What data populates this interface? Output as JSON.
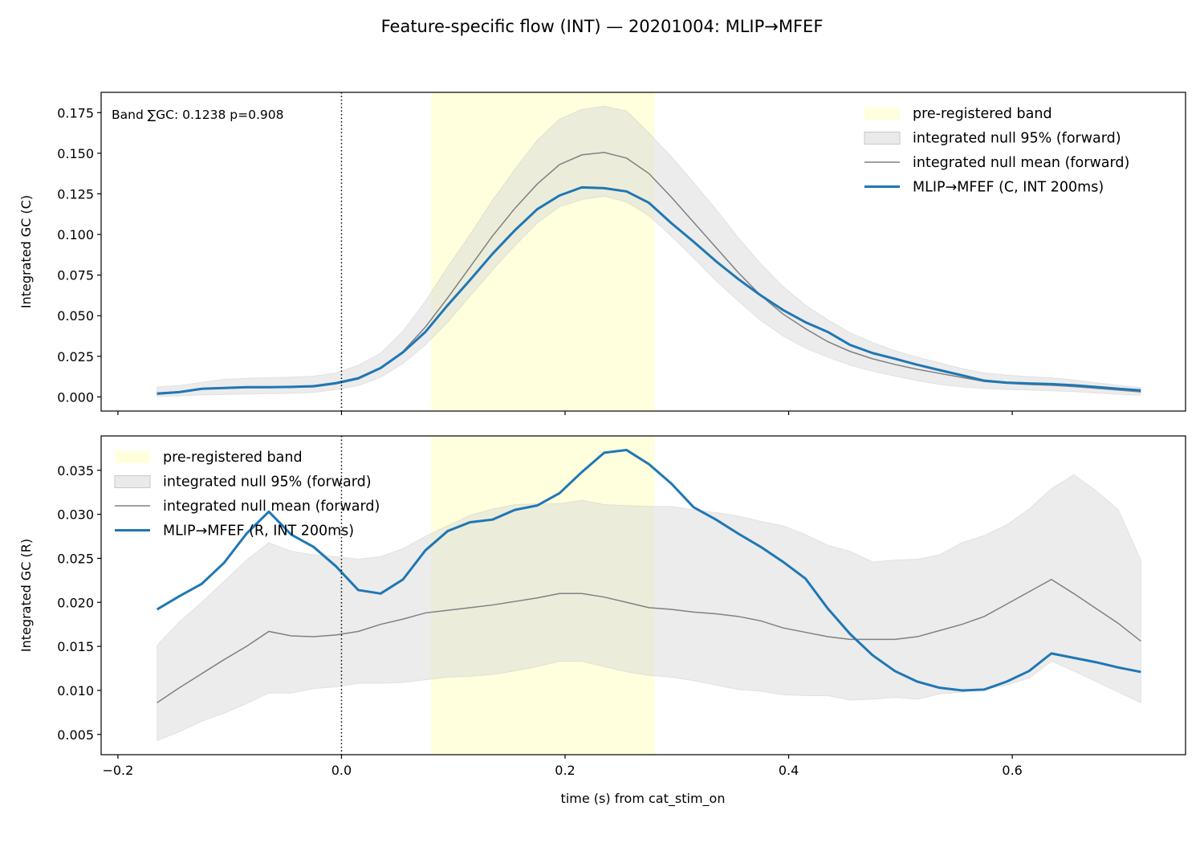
{
  "figure": {
    "title": "Feature-specific flow (INT) — 20201004: MLIP→MFEF",
    "xlabel": "time (s) from cat_stim_on"
  },
  "colors": {
    "band": "#ffffdd",
    "null_fill": "#d9d9d9",
    "null_mean": "#808080",
    "series": "#1f77b4",
    "marker_line": "#000000"
  },
  "chart_data": [
    {
      "type": "line",
      "ylabel": "Integrated GC (C)",
      "xlim": [
        -0.215,
        0.755
      ],
      "ylim": [
        -0.0087,
        0.1875
      ],
      "xticks": [
        {
          "v": -0.2,
          "label": "−0.2"
        },
        {
          "v": 0.0,
          "label": "0.0"
        },
        {
          "v": 0.2,
          "label": "0.2"
        },
        {
          "v": 0.4,
          "label": "0.4"
        },
        {
          "v": 0.6,
          "label": "0.6"
        }
      ],
      "show_xtick_labels": false,
      "yticks": [
        {
          "v": 0.0,
          "label": "0.000"
        },
        {
          "v": 0.025,
          "label": "0.025"
        },
        {
          "v": 0.05,
          "label": "0.050"
        },
        {
          "v": 0.075,
          "label": "0.075"
        },
        {
          "v": 0.1,
          "label": "0.100"
        },
        {
          "v": 0.125,
          "label": "0.125"
        },
        {
          "v": 0.15,
          "label": "0.150"
        },
        {
          "v": 0.175,
          "label": "0.175"
        }
      ],
      "band": [
        0.08,
        0.28
      ],
      "vline": 0.0,
      "annotation": "Band ∑GC: 0.1238  p=0.908",
      "legend_position": "top-right",
      "legend": {
        "band": "pre-registered band",
        "null_fill": "integrated null 95% (forward)",
        "null_mean": "integrated null mean (forward)",
        "series": "MLIP→MFEF (C, INT 200ms)"
      },
      "x": [
        -0.165,
        -0.145,
        -0.125,
        -0.105,
        -0.085,
        -0.065,
        -0.045,
        -0.025,
        -0.005,
        0.015,
        0.035,
        0.055,
        0.075,
        0.095,
        0.115,
        0.135,
        0.155,
        0.175,
        0.195,
        0.215,
        0.235,
        0.255,
        0.275,
        0.295,
        0.315,
        0.335,
        0.355,
        0.375,
        0.395,
        0.415,
        0.435,
        0.455,
        0.475,
        0.495,
        0.515,
        0.535,
        0.555,
        0.575,
        0.595,
        0.615,
        0.635,
        0.655,
        0.675,
        0.695,
        0.715
      ],
      "series": [
        0.002,
        0.003,
        0.005,
        0.0055,
        0.006,
        0.006,
        0.0062,
        0.0066,
        0.0085,
        0.0115,
        0.0178,
        0.0275,
        0.04,
        0.0565,
        0.072,
        0.088,
        0.1025,
        0.1155,
        0.124,
        0.129,
        0.1285,
        0.1265,
        0.1195,
        0.107,
        0.0955,
        0.0835,
        0.0725,
        0.0625,
        0.0535,
        0.046,
        0.04,
        0.032,
        0.027,
        0.0235,
        0.0198,
        0.0165,
        0.0133,
        0.01,
        0.0088,
        0.0083,
        0.0079,
        0.0072,
        0.0061,
        0.005,
        0.004
      ],
      "null_mean": [
        0.0025,
        0.0032,
        0.0048,
        0.0053,
        0.0056,
        0.0057,
        0.0059,
        0.0062,
        0.008,
        0.011,
        0.0175,
        0.028,
        0.043,
        0.061,
        0.08,
        0.099,
        0.116,
        0.131,
        0.143,
        0.149,
        0.1505,
        0.147,
        0.1375,
        0.123,
        0.1075,
        0.092,
        0.0765,
        0.0625,
        0.051,
        0.042,
        0.034,
        0.028,
        0.0235,
        0.02,
        0.017,
        0.0145,
        0.012,
        0.0095,
        0.0084,
        0.0077,
        0.0072,
        0.0064,
        0.0053,
        0.0042,
        0.0031
      ],
      "null_low": [
        0.0003,
        0.0006,
        0.0012,
        0.0015,
        0.0018,
        0.002,
        0.0022,
        0.0027,
        0.0045,
        0.007,
        0.012,
        0.0205,
        0.032,
        0.046,
        0.062,
        0.078,
        0.093,
        0.107,
        0.117,
        0.1215,
        0.1235,
        0.12,
        0.1115,
        0.099,
        0.0855,
        0.0715,
        0.059,
        0.047,
        0.0375,
        0.03,
        0.0245,
        0.0195,
        0.0158,
        0.0128,
        0.01,
        0.0077,
        0.0062,
        0.0052,
        0.0046,
        0.0042,
        0.0038,
        0.0032,
        0.0024,
        0.0016,
        0.001
      ],
      "null_high": [
        0.0062,
        0.007,
        0.009,
        0.0108,
        0.0115,
        0.0118,
        0.0122,
        0.0128,
        0.0148,
        0.0195,
        0.027,
        0.0405,
        0.059,
        0.08,
        0.1,
        0.121,
        0.14,
        0.158,
        0.171,
        0.177,
        0.179,
        0.176,
        0.1625,
        0.148,
        0.132,
        0.1155,
        0.098,
        0.082,
        0.068,
        0.0565,
        0.0475,
        0.0395,
        0.0335,
        0.0285,
        0.0245,
        0.021,
        0.0175,
        0.0148,
        0.0135,
        0.0125,
        0.0118,
        0.0105,
        0.0088,
        0.0072,
        0.0058
      ]
    },
    {
      "type": "line",
      "ylabel": "Integrated GC (R)",
      "xlim": [
        -0.215,
        0.755
      ],
      "ylim": [
        0.0027,
        0.0389
      ],
      "xticks": [
        {
          "v": -0.2,
          "label": "−0.2"
        },
        {
          "v": 0.0,
          "label": "0.0"
        },
        {
          "v": 0.2,
          "label": "0.2"
        },
        {
          "v": 0.4,
          "label": "0.4"
        },
        {
          "v": 0.6,
          "label": "0.6"
        }
      ],
      "show_xtick_labels": true,
      "yticks": [
        {
          "v": 0.005,
          "label": "0.005"
        },
        {
          "v": 0.01,
          "label": "0.010"
        },
        {
          "v": 0.015,
          "label": "0.015"
        },
        {
          "v": 0.02,
          "label": "0.020"
        },
        {
          "v": 0.025,
          "label": "0.025"
        },
        {
          "v": 0.03,
          "label": "0.030"
        },
        {
          "v": 0.035,
          "label": "0.035"
        }
      ],
      "band": [
        0.08,
        0.28
      ],
      "vline": 0.0,
      "annotation": "",
      "legend_position": "top-left",
      "legend": {
        "band": "pre-registered band",
        "null_fill": "integrated null 95% (forward)",
        "null_mean": "integrated null mean (forward)",
        "series": "MLIP→MFEF (R, INT 200ms)"
      },
      "x": [
        -0.165,
        -0.145,
        -0.125,
        -0.105,
        -0.085,
        -0.065,
        -0.045,
        -0.025,
        -0.005,
        0.015,
        0.035,
        0.055,
        0.075,
        0.095,
        0.115,
        0.135,
        0.155,
        0.175,
        0.195,
        0.215,
        0.235,
        0.255,
        0.275,
        0.295,
        0.315,
        0.335,
        0.355,
        0.375,
        0.395,
        0.415,
        0.435,
        0.455,
        0.475,
        0.495,
        0.515,
        0.535,
        0.555,
        0.575,
        0.595,
        0.615,
        0.635,
        0.655,
        0.675,
        0.695,
        0.715
      ],
      "series": [
        0.0192,
        0.0207,
        0.0221,
        0.0245,
        0.0278,
        0.0303,
        0.0277,
        0.0263,
        0.0241,
        0.0214,
        0.021,
        0.0226,
        0.0259,
        0.0281,
        0.0291,
        0.0294,
        0.0305,
        0.031,
        0.0324,
        0.0348,
        0.037,
        0.0373,
        0.0357,
        0.0335,
        0.0308,
        0.0294,
        0.0278,
        0.0263,
        0.0246,
        0.0227,
        0.0193,
        0.0164,
        0.014,
        0.0122,
        0.011,
        0.0103,
        0.01,
        0.0101,
        0.011,
        0.0122,
        0.0142,
        0.0137,
        0.0132,
        0.0126,
        0.0121
      ],
      "null_mean": [
        0.0086,
        0.0103,
        0.0119,
        0.0135,
        0.015,
        0.0167,
        0.0162,
        0.0161,
        0.0163,
        0.0167,
        0.0175,
        0.0181,
        0.0188,
        0.0191,
        0.0194,
        0.0197,
        0.0201,
        0.0205,
        0.021,
        0.021,
        0.0206,
        0.02,
        0.0194,
        0.0192,
        0.0189,
        0.0187,
        0.0184,
        0.0179,
        0.0171,
        0.0166,
        0.0161,
        0.0158,
        0.0158,
        0.0158,
        0.0161,
        0.0168,
        0.0175,
        0.0184,
        0.0198,
        0.0212,
        0.0226,
        0.021,
        0.0193,
        0.0176,
        0.0156
      ],
      "null_low": [
        0.0043,
        0.0053,
        0.0065,
        0.0074,
        0.0085,
        0.0097,
        0.0097,
        0.0102,
        0.0104,
        0.0108,
        0.0108,
        0.0109,
        0.0112,
        0.0115,
        0.0116,
        0.0118,
        0.0122,
        0.0127,
        0.0133,
        0.0133,
        0.0127,
        0.0121,
        0.0117,
        0.0115,
        0.0111,
        0.0106,
        0.0101,
        0.0099,
        0.0095,
        0.0094,
        0.0094,
        0.0089,
        0.009,
        0.0092,
        0.009,
        0.0096,
        0.0098,
        0.0101,
        0.0106,
        0.0114,
        0.0133,
        0.0122,
        0.011,
        0.0098,
        0.0086
      ],
      "null_high": [
        0.0151,
        0.0178,
        0.02,
        0.0224,
        0.0248,
        0.0268,
        0.0258,
        0.0254,
        0.0252,
        0.0249,
        0.0252,
        0.0261,
        0.0275,
        0.0287,
        0.0299,
        0.0306,
        0.0311,
        0.0312,
        0.0312,
        0.0316,
        0.0311,
        0.031,
        0.0309,
        0.0309,
        0.0305,
        0.0302,
        0.0298,
        0.0292,
        0.0287,
        0.0277,
        0.0265,
        0.0258,
        0.0246,
        0.0248,
        0.0249,
        0.0254,
        0.0268,
        0.0276,
        0.0288,
        0.0306,
        0.0329,
        0.0345,
        0.0327,
        0.0305,
        0.0248
      ]
    }
  ]
}
